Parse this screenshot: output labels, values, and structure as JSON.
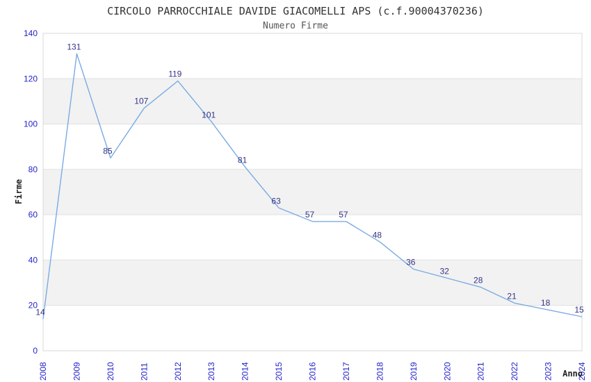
{
  "chart_data": {
    "type": "line",
    "title": "CIRCOLO PARROCCHIALE DAVIDE GIACOMELLI APS (c.f.90004370236)",
    "subtitle": "Numero Firme",
    "xlabel": "Anno",
    "ylabel": "Firme",
    "categories": [
      "2008",
      "2009",
      "2010",
      "2011",
      "2012",
      "2013",
      "2014",
      "2015",
      "2016",
      "2017",
      "2018",
      "2019",
      "2020",
      "2021",
      "2022",
      "2023",
      "2024"
    ],
    "values": [
      14,
      131,
      85,
      107,
      119,
      101,
      81,
      63,
      57,
      57,
      48,
      36,
      32,
      28,
      21,
      18,
      15
    ],
    "ylim": [
      0,
      140
    ],
    "ytick_step": 20,
    "ytick_labels": [
      "0",
      "20",
      "40",
      "60",
      "80",
      "100",
      "120",
      "140"
    ],
    "grid": "horizontal",
    "band_fill": "alternating-horizontal",
    "legend": "none",
    "point_labels_visible": true,
    "colors": {
      "line": "#7aabe2",
      "point_label": "#333388",
      "tick_label": "#2222cc",
      "title": "#333333",
      "subtitle": "#555555",
      "axis_title": "#222222",
      "band": "#f2f2f2",
      "gridline": "#e0e0e0",
      "plot_border": "#d8d8d8",
      "background": "#ffffff"
    }
  }
}
